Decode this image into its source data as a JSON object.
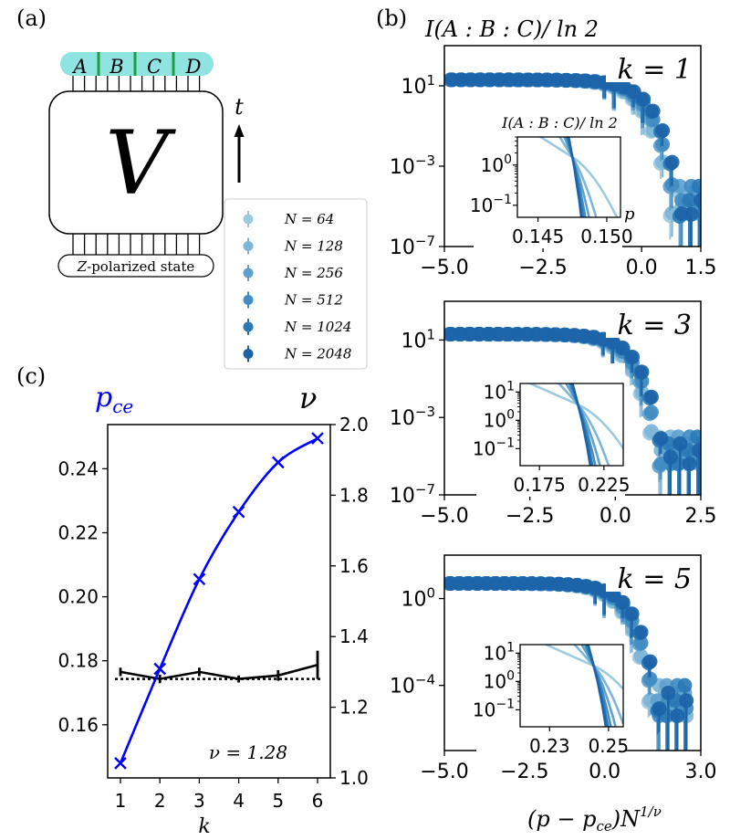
{
  "labels": {
    "panel_a": "(a)",
    "panel_b": "(b)",
    "panel_c": "(c)",
    "b_title": "I(A : B : C)/ ln 2",
    "b_xlabel": "(p − p",
    "b_xlabel_sub": "ce",
    "b_xlabel_rest": ")N",
    "b_xlabel_sup": "1/ν",
    "inset_title": "I(A : B : C)/ ln 2",
    "inset_p": "p"
  },
  "diagram": {
    "regions": [
      "A",
      "B",
      "C",
      "D"
    ],
    "unitary": "V",
    "time": "t",
    "initial_state_main": "Z",
    "initial_state_rest": "-polarized state"
  },
  "legend": {
    "entries": [
      {
        "label": "N = 64",
        "color": "#9ecae1"
      },
      {
        "label": "N = 128",
        "color": "#7eb6d9"
      },
      {
        "label": "N = 256",
        "color": "#5ea1cf"
      },
      {
        "label": "N = 512",
        "color": "#428cc1"
      },
      {
        "label": "N = 1024",
        "color": "#2a78b6"
      },
      {
        "label": "N = 2048",
        "color": "#1c63a8"
      }
    ]
  },
  "chart_data": [
    {
      "type": "scatter",
      "panel": "b",
      "k_label": "k = 1",
      "xlim": [
        -5.0,
        1.5
      ],
      "xticks": [
        "−5.0",
        "−2.5",
        "0.0",
        "1.5"
      ],
      "xtick_values": [
        -5.0,
        -2.5,
        0.0,
        1.5
      ],
      "ylim_log10": [
        -7,
        3
      ],
      "yticks": [
        {
          "base": "10",
          "exp": "1",
          "log": 1
        },
        {
          "base": "10",
          "exp": "−3",
          "log": -3
        },
        {
          "base": "10",
          "exp": "−7",
          "log": -7
        }
      ],
      "series_profile": {
        "amplitude": 20,
        "decay_center": -0.5,
        "decay_width": 0.5,
        "x_end": 1.45
      },
      "inset": {
        "xlim": [
          0.1435,
          0.151
        ],
        "xticks": [
          "0.145",
          "0.150"
        ],
        "xtick_values": [
          0.145,
          0.15
        ],
        "ylim_log10": [
          -1.3,
          0.7
        ],
        "yticks": [
          {
            "base": "10",
            "exp": "0",
            "log": 0
          },
          {
            "base": "10",
            "exp": "−1",
            "log": -1
          }
        ],
        "crossing_x": 0.1475,
        "show_title": true
      }
    },
    {
      "type": "scatter",
      "panel": "b",
      "k_label": "k = 3",
      "xlim": [
        -5.0,
        2.5
      ],
      "xticks": [
        "−5.0",
        "−2.5",
        "0.0",
        "2.5"
      ],
      "xtick_values": [
        -5.0,
        -2.5,
        0.0,
        2.5
      ],
      "ylim_log10": [
        -7,
        3
      ],
      "yticks": [
        {
          "base": "10",
          "exp": "1",
          "log": 1
        },
        {
          "base": "10",
          "exp": "−3",
          "log": -3
        },
        {
          "base": "10",
          "exp": "−7",
          "log": -7
        }
      ],
      "series_profile": {
        "amplitude": 20,
        "decay_center": -0.2,
        "decay_width": 0.55,
        "x_end": 2.4
      },
      "inset": {
        "xlim": [
          0.16,
          0.24
        ],
        "xticks": [
          "0.175",
          "0.225"
        ],
        "xtick_values": [
          0.175,
          0.225
        ],
        "ylim_log10": [
          -1.6,
          1.3
        ],
        "yticks": [
          {
            "base": "10",
            "exp": "1",
            "log": 1
          },
          {
            "base": "10",
            "exp": "0",
            "log": 0
          },
          {
            "base": "10",
            "exp": "−1",
            "log": -1
          }
        ],
        "crossing_x": 0.205,
        "show_title": false
      }
    },
    {
      "type": "scatter",
      "panel": "b",
      "k_label": "k = 5",
      "xlim": [
        -5.0,
        3.0
      ],
      "xticks": [
        "−5.0",
        "−2.5",
        "0.0",
        "3.0"
      ],
      "xtick_values": [
        -5.0,
        -2.5,
        0.0,
        3.0
      ],
      "ylim_log10": [
        -7,
        2
      ],
      "yticks": [
        {
          "base": "10",
          "exp": "0",
          "log": 0
        },
        {
          "base": "10",
          "exp": "−4",
          "log": -4
        }
      ],
      "series_profile": {
        "amplitude": 5,
        "decay_center": 0.0,
        "decay_width": 0.6,
        "x_end": 2.5
      },
      "inset": {
        "xlim": [
          0.22,
          0.255
        ],
        "xticks": [
          "0.23",
          "0.25"
        ],
        "xtick_values": [
          0.23,
          0.25
        ],
        "ylim_log10": [
          -1.6,
          1.3
        ],
        "yticks": [
          {
            "base": "10",
            "exp": "1",
            "log": 1
          },
          {
            "base": "10",
            "exp": "0",
            "log": 0
          },
          {
            "base": "10",
            "exp": "−1",
            "log": -1
          }
        ],
        "crossing_x": 0.245,
        "show_title": false
      }
    },
    {
      "type": "line",
      "panel": "c",
      "x": [
        1,
        2,
        3,
        4,
        5,
        6
      ],
      "xlabel": "k",
      "xticks": [
        "1",
        "2",
        "3",
        "4",
        "5",
        "6"
      ],
      "left_label": "p",
      "left_label_sub": "ce",
      "right_label": "ν",
      "left_color": "#0000ff",
      "series": [
        {
          "name": "p_ce",
          "axis": "left",
          "color": "#0000ff",
          "values": [
            0.148,
            0.1775,
            0.2055,
            0.2265,
            0.242,
            0.2495
          ]
        },
        {
          "name": "nu",
          "axis": "right",
          "color": "#000000",
          "values": [
            1.3,
            1.28,
            1.3,
            1.28,
            1.29,
            1.32
          ],
          "errors": [
            0.012,
            0.012,
            0.012,
            0.01,
            0.015,
            0.04
          ]
        }
      ],
      "reference_nu": 1.28,
      "reference_label": "ν = 1.28",
      "ylim_left": [
        0.1434,
        0.2538
      ],
      "yticks_left": [
        "0.16",
        "0.18",
        "0.20",
        "0.22",
        "0.24"
      ],
      "ytick_values_left": [
        0.16,
        0.18,
        0.2,
        0.22,
        0.24
      ],
      "ylim_right": [
        1.0,
        2.0
      ],
      "yticks_right": [
        "1.0",
        "1.2",
        "1.4",
        "1.6",
        "1.8",
        "2.0"
      ],
      "ytick_values_right": [
        1.0,
        1.2,
        1.4,
        1.6,
        1.8,
        2.0
      ]
    }
  ]
}
